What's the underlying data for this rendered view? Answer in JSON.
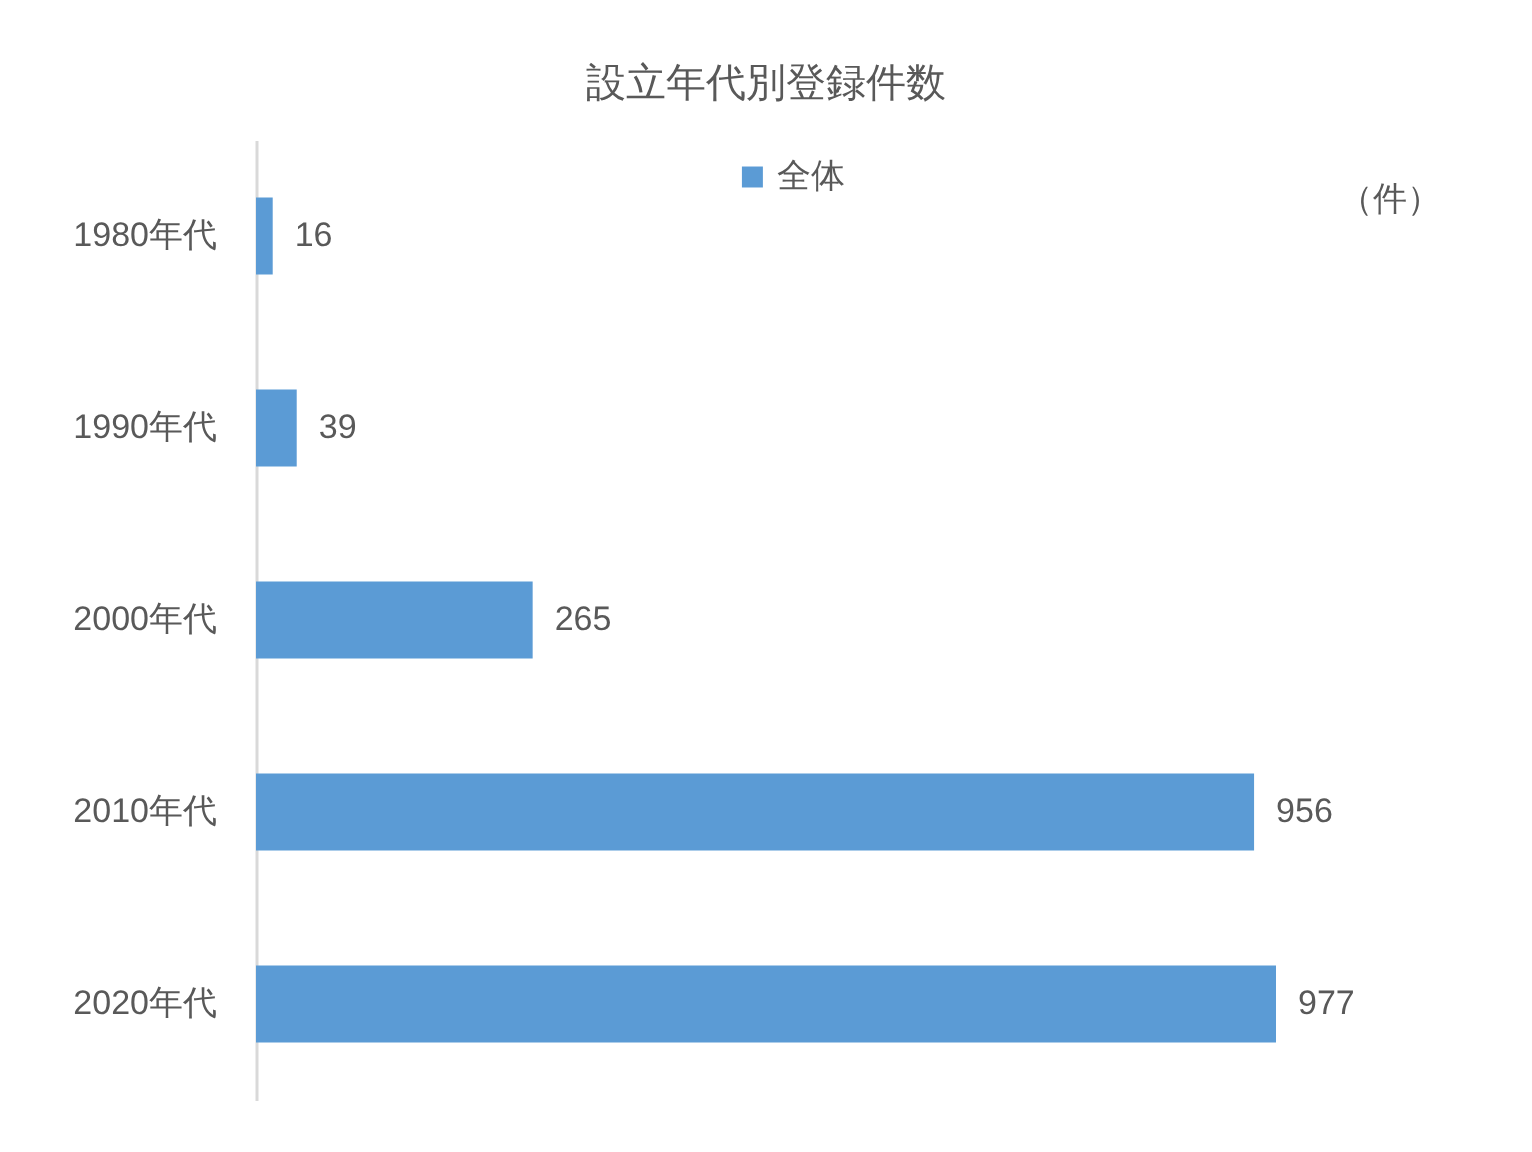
{
  "chart_data": {
    "type": "bar",
    "orientation": "horizontal",
    "title": "設立年代別登録件数",
    "categories": [
      "1980年代",
      "1990年代",
      "2000年代",
      "2010年代",
      "2020年代"
    ],
    "series": [
      {
        "name": "全体",
        "color": "#5b9bd5",
        "values": [
          16,
          39,
          265,
          956,
          977
        ]
      }
    ],
    "data_labels": true,
    "legend": "top",
    "annotations": [
      "（件）"
    ]
  }
}
